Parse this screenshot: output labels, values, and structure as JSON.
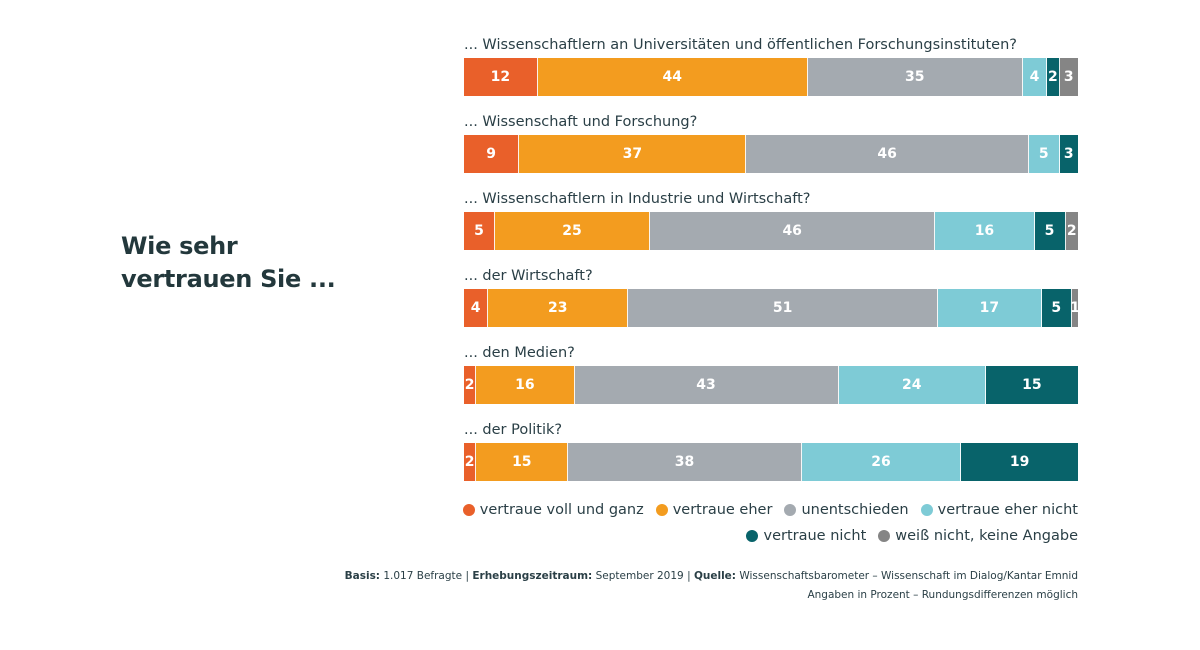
{
  "headline": {
    "line1": "Wie sehr",
    "line2": "vertrauen Sie ..."
  },
  "chart_data": {
    "type": "bar",
    "orientation": "horizontal-stacked",
    "title": "Wie sehr vertrauen Sie ...",
    "categories": [
      "... Wissenschaftlern an Universitäten und öffentlichen Forschungsinstituten?",
      "... Wissenschaft und Forschung?",
      "... Wissenschaftlern in Industrie und Wirtschaft?",
      "... der Wirtschaft?",
      "... den Medien?",
      "... der Politik?"
    ],
    "series": [
      {
        "name": "vertraue voll und ganz",
        "color": "#e9602a",
        "values": [
          12,
          9,
          5,
          4,
          2,
          2
        ]
      },
      {
        "name": "vertraue eher",
        "color": "#f39c1f",
        "values": [
          44,
          37,
          25,
          23,
          16,
          15
        ]
      },
      {
        "name": "unentschieden",
        "color": "#a4aab0",
        "values": [
          35,
          46,
          46,
          51,
          43,
          38
        ]
      },
      {
        "name": "vertraue eher nicht",
        "color": "#7ecbd6",
        "values": [
          4,
          5,
          16,
          17,
          24,
          26
        ]
      },
      {
        "name": "vertraue nicht",
        "color": "#08636a",
        "values": [
          2,
          3,
          5,
          5,
          15,
          19
        ]
      },
      {
        "name": "weiß nicht, keine Angabe",
        "color": "#858585",
        "values": [
          3,
          0,
          2,
          1,
          0,
          0
        ]
      }
    ],
    "xlim": [
      0,
      100
    ],
    "unit": "Prozent"
  },
  "legend": {
    "row1": [
      "vertraue voll und ganz",
      "vertraue eher",
      "unentschieden",
      "vertraue eher nicht"
    ],
    "row2": [
      "vertraue nicht",
      "weiß nicht, keine Angabe"
    ]
  },
  "footer": {
    "basis_label": "Basis:",
    "basis_value": "1.017 Befragte",
    "zeitraum_label": "Erhebungszeitraum:",
    "zeitraum_value": "September 2019",
    "quelle_label": "Quelle:",
    "quelle_value": "Wissenschaftsbarometer – Wissenschaft im Dialog/Kantar Emnid",
    "separator": "|",
    "note": "Angaben in Prozent – Rundungsdifferenzen möglich"
  }
}
